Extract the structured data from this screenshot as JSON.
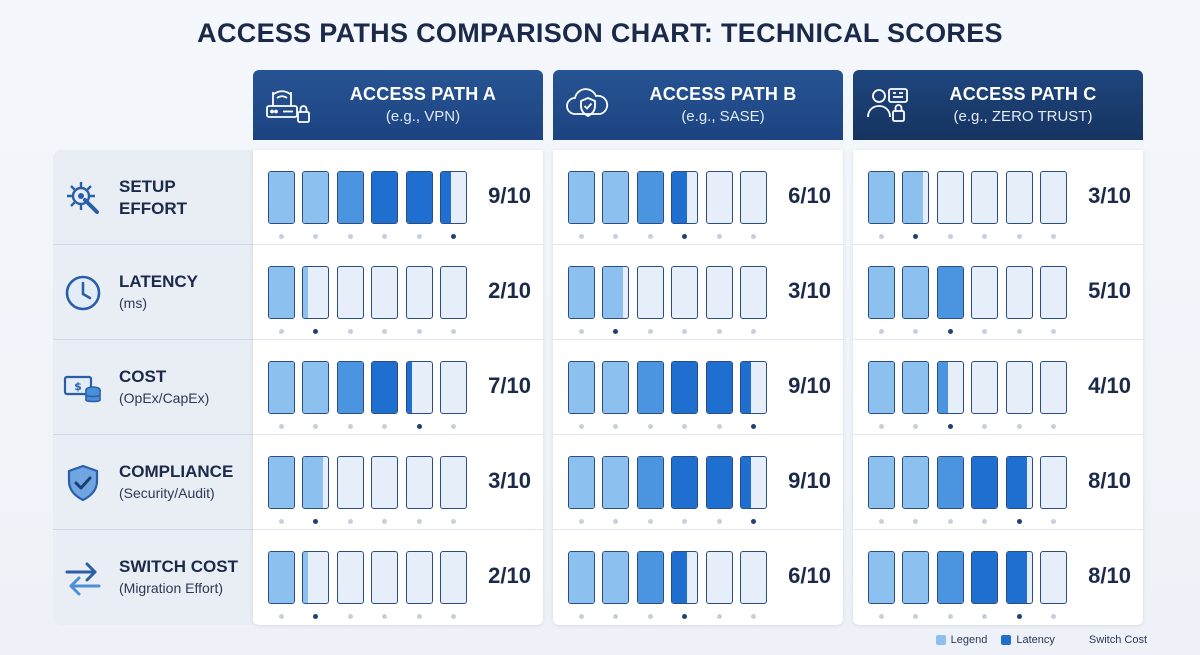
{
  "title": "ACCESS PATHS COMPARISON CHART: TECHNICAL SCORES",
  "colors": {
    "header": "#1f4785",
    "empty": "#e6eefa",
    "light": "#8cc0ee",
    "medium": "#4a94e0",
    "dark": "#1f6fd1"
  },
  "chart_data": {
    "type": "table",
    "title": "ACCESS PATHS COMPARISON CHART: TECHNICAL SCORES",
    "scale_max": 10,
    "segments": 6,
    "rows": [
      {
        "name": "SETUP EFFORT",
        "sub": "",
        "icon": "gear-wrench-icon"
      },
      {
        "name": "LATENCY",
        "sub": "(ms)",
        "icon": "clock-icon"
      },
      {
        "name": "COST",
        "sub": "(OpEx/CapEx)",
        "icon": "money-coins-icon"
      },
      {
        "name": "COMPLIANCE",
        "sub": "(Security/Audit)",
        "icon": "shield-check-icon"
      },
      {
        "name": "SWITCH COST",
        "sub": "(Migration Effort)",
        "icon": "swap-arrows-icon"
      }
    ],
    "columns": [
      {
        "name": "ACCESS PATH A",
        "sub": "(e.g., VPN)",
        "icon": "router-lock-icon",
        "scores": [
          9,
          2,
          7,
          3,
          2
        ],
        "score_labels": [
          "9/10",
          "2/10",
          "7/10",
          "3/10",
          "2/10"
        ]
      },
      {
        "name": "ACCESS PATH B",
        "sub": "(e.g., SASE)",
        "icon": "cloud-shield-icon",
        "scores": [
          6,
          3,
          9,
          9,
          6
        ],
        "score_labels": [
          "6/10",
          "3/10",
          "9/10",
          "9/10",
          "6/10"
        ]
      },
      {
        "name": "ACCESS PATH C",
        "sub": "(e.g., ZERO TRUST)",
        "icon": "user-id-lock-icon",
        "scores": [
          3,
          5,
          4,
          8,
          8
        ],
        "score_labels": [
          "3/10",
          "5/10",
          "4/10",
          "8/10",
          "8/10"
        ]
      }
    ]
  },
  "legend": [
    {
      "label": "Legend",
      "color": "#8cc0ee"
    },
    {
      "label": "Latency",
      "color": "#1f6fd1"
    },
    {
      "label": "Switch Cost",
      "color": ""
    }
  ]
}
